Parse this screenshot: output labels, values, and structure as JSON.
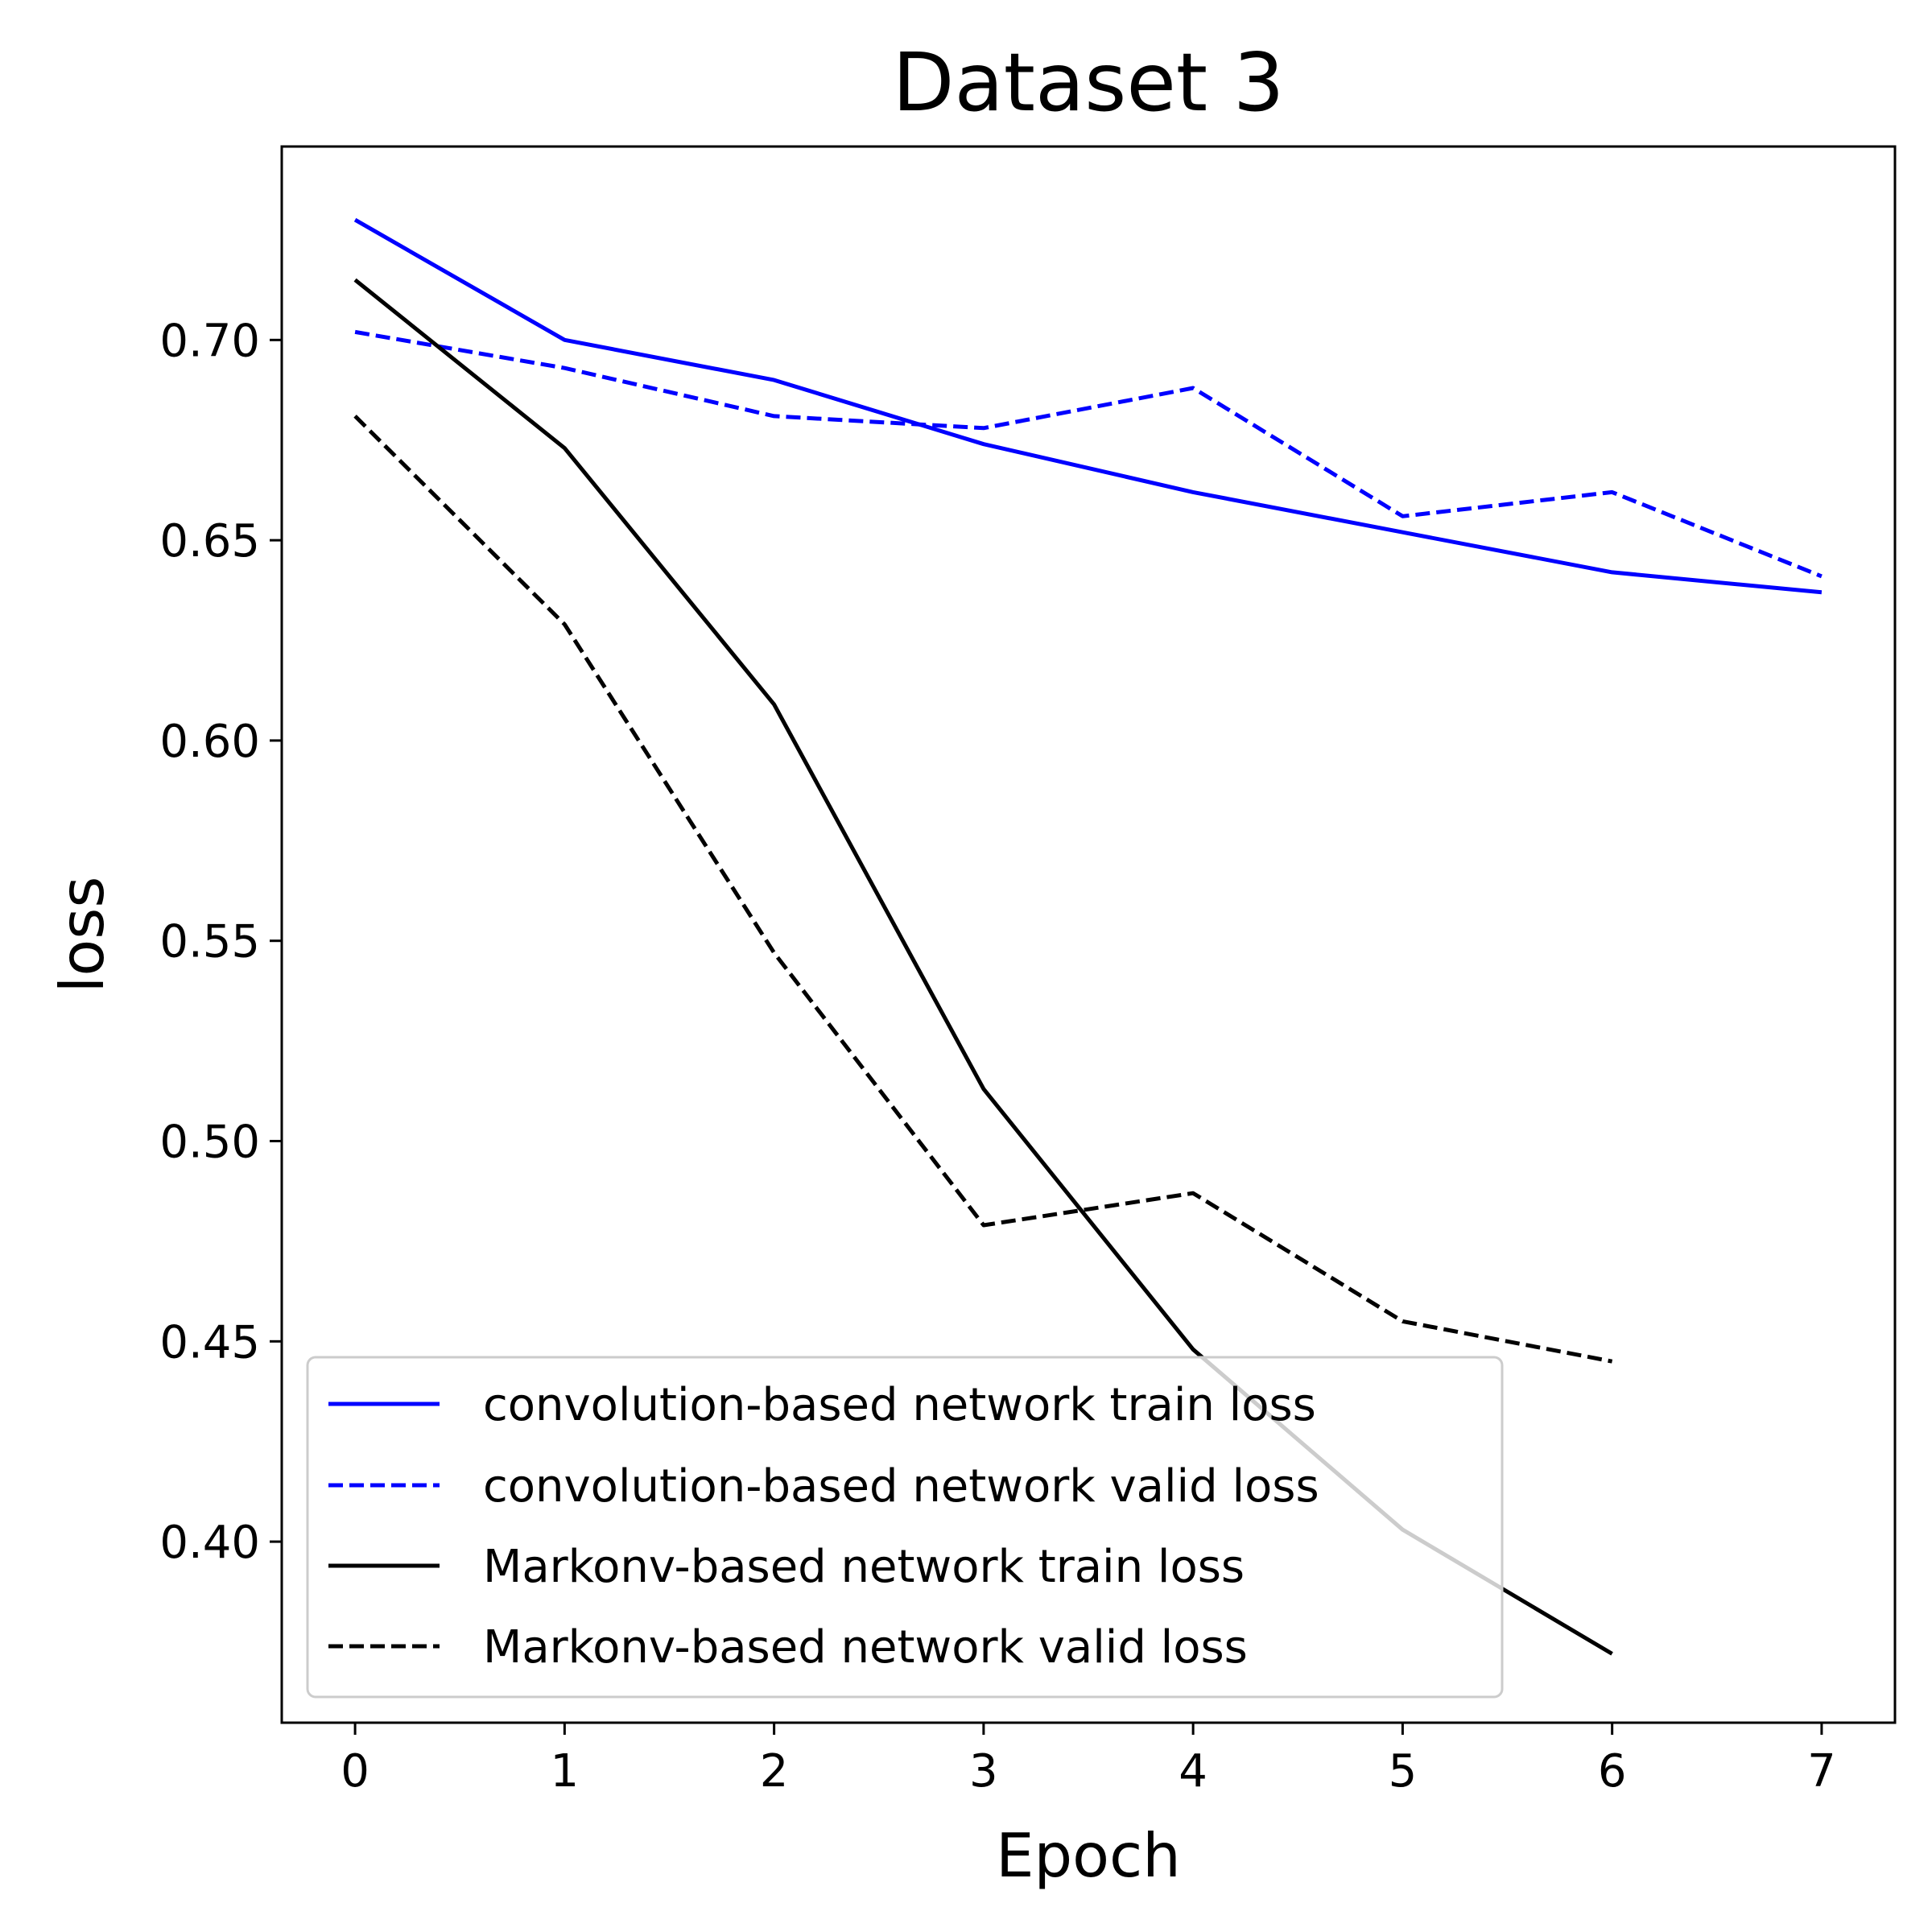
{
  "chart_data": {
    "type": "line",
    "title": "Dataset 3",
    "xlabel": "Epoch",
    "ylabel": "loss",
    "xlim": [
      -0.35,
      7.35
    ],
    "ylim": [
      0.3548,
      0.7483
    ],
    "x_ticks": [
      0,
      1,
      2,
      3,
      4,
      5,
      6,
      7
    ],
    "x_tick_labels": [
      "0",
      "1",
      "2",
      "3",
      "4",
      "5",
      "6",
      "7"
    ],
    "y_ticks": [
      0.4,
      0.45,
      0.5,
      0.55,
      0.6,
      0.65,
      0.7
    ],
    "y_tick_labels": [
      "0.40",
      "0.45",
      "0.50",
      "0.55",
      "0.60",
      "0.65",
      "0.70"
    ],
    "grid": false,
    "legend_position": "lower-left",
    "series": [
      {
        "name": "convolution-based network train loss",
        "color": "#0000ff",
        "style": "solid",
        "x": [
          0,
          1,
          2,
          3,
          4,
          5,
          6,
          7
        ],
        "y": [
          0.73,
          0.7,
          0.69,
          0.674,
          0.662,
          0.652,
          0.642,
          0.637
        ]
      },
      {
        "name": "convolution-based network valid loss",
        "color": "#0000ff",
        "style": "dashed",
        "x": [
          0,
          1,
          2,
          3,
          4,
          5,
          6,
          7
        ],
        "y": [
          0.702,
          0.693,
          0.681,
          0.678,
          0.688,
          0.656,
          0.662,
          0.641
        ]
      },
      {
        "name": "Markonv-based network train loss",
        "color": "#000000",
        "style": "solid",
        "x": [
          0,
          1,
          2,
          3,
          4,
          5,
          6
        ],
        "y": [
          0.715,
          0.673,
          0.609,
          0.513,
          0.448,
          0.403,
          0.372
        ]
      },
      {
        "name": "Markonv-based network valid loss",
        "color": "#000000",
        "style": "dashed",
        "x": [
          0,
          1,
          2,
          3,
          4,
          5,
          6
        ],
        "y": [
          0.681,
          0.629,
          0.547,
          0.479,
          0.487,
          0.455,
          0.445
        ]
      }
    ]
  }
}
